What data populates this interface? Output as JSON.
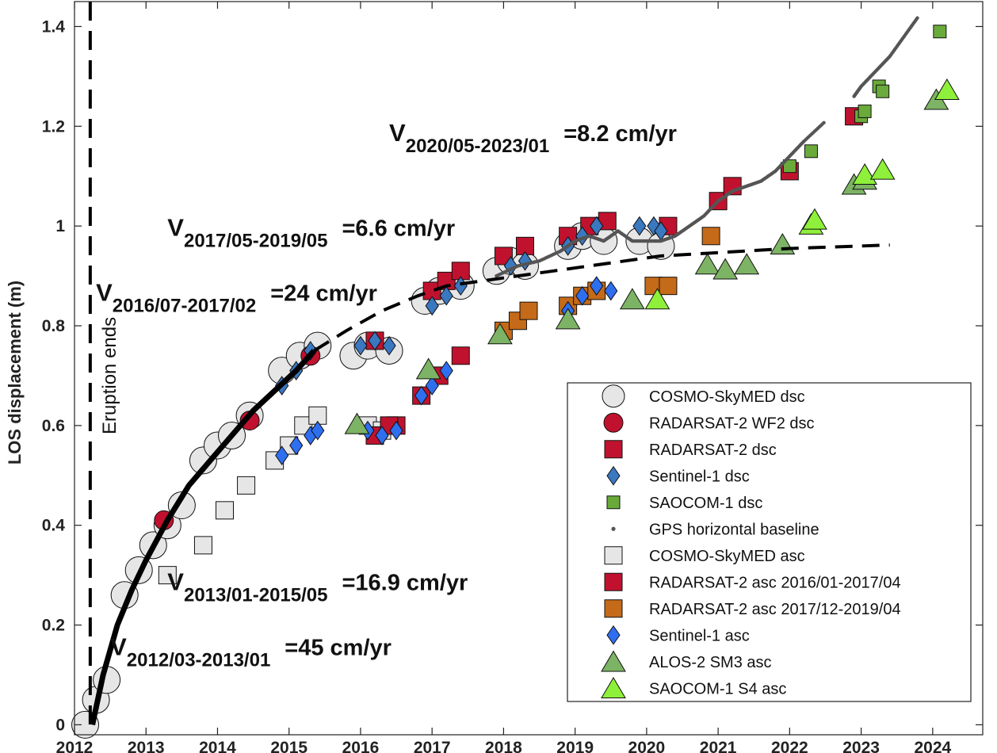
{
  "chart_data": {
    "type": "scatter",
    "title": "",
    "xlabel": "",
    "ylabel": "LOS displacement (m)",
    "xlim": [
      2012.0,
      2024.7
    ],
    "ylim": [
      -0.02,
      1.45
    ],
    "xticks": [
      2012,
      2013,
      2014,
      2015,
      2016,
      2017,
      2018,
      2019,
      2020,
      2021,
      2022,
      2023,
      2024
    ],
    "xtick_labels": [
      "2012",
      "2013",
      "2014",
      "2015",
      "2016",
      "2017",
      "2018",
      "2019",
      "2020",
      "2021",
      "2022",
      "2023",
      "2024"
    ],
    "yticks": [
      0,
      0.2,
      0.4,
      0.6,
      0.8,
      1.0,
      1.2,
      1.4
    ],
    "ytick_labels": [
      "0",
      "0.2",
      "0.4",
      "0.6",
      "0.8",
      "1",
      "1.2",
      "1.4"
    ],
    "grid": false,
    "legend_position": "bottom-right",
    "eruption_line": {
      "x": 2012.22,
      "label": "Eruption ends"
    },
    "fits": [
      {
        "style": "solid",
        "x": [
          2012.25,
          2012.4,
          2012.6,
          2012.8,
          2013.0,
          2013.3,
          2013.6,
          2013.9,
          2014.2,
          2014.5,
          2014.8,
          2015.1,
          2015.35
        ],
        "y": [
          0.0,
          0.1,
          0.2,
          0.27,
          0.33,
          0.41,
          0.48,
          0.53,
          0.58,
          0.63,
          0.67,
          0.71,
          0.75
        ]
      },
      {
        "style": "dashed",
        "x": [
          2015.35,
          2015.8,
          2016.3,
          2016.8,
          2017.2,
          2017.7,
          2018.2,
          2018.7,
          2019.2,
          2019.7,
          2020.2,
          2020.8,
          2021.4,
          2022.0,
          2022.6,
          2023.4
        ],
        "y": [
          0.75,
          0.79,
          0.83,
          0.86,
          0.88,
          0.89,
          0.9,
          0.91,
          0.92,
          0.93,
          0.94,
          0.945,
          0.95,
          0.955,
          0.958,
          0.962
        ]
      }
    ],
    "annotations": [
      {
        "main": "V",
        "sub": "2012/03-2013/01",
        "rate": "=45 cm/yr",
        "x": 2012.5,
        "y": 0.14
      },
      {
        "main": "V",
        "sub": "2013/01-2015/05",
        "rate": "=16.9 cm/yr",
        "x": 2013.3,
        "y": 0.27
      },
      {
        "main": "V",
        "sub": "2016/07-2017/02",
        "rate": "=24 cm/yr",
        "x": 2012.3,
        "y": 0.85
      },
      {
        "main": "V",
        "sub": "2017/05-2019/05",
        "rate": "=6.6 cm/yr",
        "x": 2013.3,
        "y": 0.98
      },
      {
        "main": "V",
        "sub": "2020/05-2023/01",
        "rate": "=8.2 cm/yr",
        "x": 2016.4,
        "y": 1.17
      }
    ],
    "series": [
      {
        "name": "COSMO-SkyMED dsc",
        "marker": "circle",
        "size": 17,
        "color": "#e6e6e6",
        "x": [
          2012.15,
          2012.3,
          2012.45,
          2012.7,
          2012.9,
          2013.1,
          2013.3,
          2013.5,
          2013.8,
          2014.0,
          2014.2,
          2014.45,
          2014.9,
          2015.15,
          2015.4,
          2015.9,
          2016.1,
          2016.4,
          2016.9,
          2017.1,
          2017.4,
          2017.9,
          2018.1,
          2018.3,
          2018.9,
          2019.1,
          2019.4,
          2019.9,
          2020.2
        ],
        "y": [
          0.0,
          0.05,
          0.09,
          0.26,
          0.31,
          0.36,
          0.4,
          0.44,
          0.53,
          0.56,
          0.58,
          0.62,
          0.71,
          0.74,
          0.76,
          0.74,
          0.76,
          0.75,
          0.85,
          0.87,
          0.88,
          0.91,
          0.93,
          0.92,
          0.96,
          0.98,
          0.97,
          0.97,
          0.96
        ]
      },
      {
        "name": "RADARSAT-2 WF2 dsc",
        "marker": "circle",
        "size": 12,
        "color": "#c0122e",
        "x": [
          2013.25,
          2014.45,
          2015.3
        ],
        "y": [
          0.41,
          0.61,
          0.74
        ]
      },
      {
        "name": "RADARSAT-2 dsc",
        "marker": "square",
        "size": 11,
        "color": "#c0122e",
        "x": [
          2016.2,
          2016.5,
          2017.0,
          2017.2,
          2017.4,
          2018.0,
          2018.3,
          2018.9,
          2019.2,
          2019.45,
          2020.3,
          2021.0,
          2021.2,
          2022.0,
          2022.9
        ],
        "y": [
          0.77,
          0.6,
          0.87,
          0.89,
          0.91,
          0.94,
          0.96,
          0.98,
          1.0,
          1.01,
          1.0,
          1.05,
          1.08,
          1.11,
          1.22
        ]
      },
      {
        "name": "Sentinel-1 dsc",
        "marker": "diamond",
        "size": 10,
        "color": "#3a78c0",
        "x": [
          2014.9,
          2015.1,
          2015.3,
          2016.0,
          2016.2,
          2016.4,
          2017.0,
          2017.2,
          2017.4,
          2018.1,
          2018.3,
          2018.9,
          2019.1,
          2019.3,
          2019.9,
          2020.1,
          2020.2
        ],
        "y": [
          0.68,
          0.71,
          0.75,
          0.76,
          0.77,
          0.76,
          0.84,
          0.86,
          0.88,
          0.92,
          0.93,
          0.96,
          0.98,
          1.0,
          1.0,
          1.0,
          0.99
        ]
      },
      {
        "name": "SAOCOM-1 dsc",
        "marker": "square",
        "size": 8,
        "color": "#6aaa3a",
        "x": [
          2022.0,
          2022.3,
          2023.0,
          2023.05,
          2023.25,
          2023.3,
          2024.1
        ],
        "y": [
          1.12,
          1.15,
          1.22,
          1.23,
          1.28,
          1.27,
          1.39
        ]
      },
      {
        "name": "GPS horizontal baseline",
        "marker": "dot",
        "size": 2.2,
        "color": "#555555",
        "segments": [
          {
            "x": [
              2017.9,
              2018.2,
              2018.5,
              2018.8,
              2019.0,
              2019.2,
              2019.4,
              2019.6,
              2019.8,
              2020.0,
              2020.2,
              2020.4,
              2020.6,
              2020.8,
              2021.0,
              2021.2,
              2021.4,
              2021.6,
              2021.8,
              2022.0,
              2022.2,
              2022.5
            ],
            "y": [
              0.9,
              0.92,
              0.93,
              0.95,
              0.97,
              0.98,
              0.97,
              0.99,
              0.97,
              0.97,
              0.97,
              0.98,
              1.0,
              1.02,
              1.05,
              1.07,
              1.08,
              1.09,
              1.11,
              1.14,
              1.17,
              1.21
            ]
          },
          {
            "x": [
              2022.9,
              2023.0,
              2023.2,
              2023.4,
              2023.6,
              2023.8
            ],
            "y": [
              1.26,
              1.28,
              1.31,
              1.34,
              1.38,
              1.42
            ]
          }
        ]
      },
      {
        "name": "COSMO-SkyMED asc",
        "marker": "square",
        "size": 11,
        "color": "#e6e6e6",
        "x": [
          2013.3,
          2013.8,
          2014.1,
          2014.4,
          2014.8,
          2015.0,
          2015.2,
          2015.4,
          2016.1,
          2016.3
        ],
        "y": [
          0.3,
          0.36,
          0.43,
          0.48,
          0.53,
          0.56,
          0.6,
          0.62,
          0.6,
          0.59
        ]
      },
      {
        "name": "RADARSAT-2 asc 2016/01-2017/04",
        "marker": "square",
        "size": 11,
        "color": "#c0122e",
        "x": [
          2016.2,
          2016.4,
          2016.85,
          2017.1,
          2017.4
        ],
        "y": [
          0.58,
          0.6,
          0.66,
          0.7,
          0.74
        ]
      },
      {
        "name": "RADARSAT-2 asc 2017/12-2019/04",
        "marker": "square",
        "size": 11,
        "color": "#c46a18",
        "x": [
          2018.0,
          2018.2,
          2018.35,
          2018.9,
          2019.1,
          2019.3,
          2020.1,
          2020.3,
          2020.9
        ],
        "y": [
          0.79,
          0.81,
          0.83,
          0.84,
          0.86,
          0.87,
          0.88,
          0.88,
          0.98
        ]
      },
      {
        "name": "Sentinel-1 asc",
        "marker": "diamond",
        "size": 10,
        "color": "#2e6ff0",
        "x": [
          2014.9,
          2015.1,
          2015.3,
          2015.4,
          2016.1,
          2016.3,
          2016.5,
          2016.85,
          2017.0,
          2017.2,
          2018.9,
          2019.1,
          2019.3,
          2019.5
        ],
        "y": [
          0.54,
          0.56,
          0.58,
          0.59,
          0.59,
          0.58,
          0.59,
          0.66,
          0.68,
          0.71,
          0.83,
          0.86,
          0.88,
          0.87
        ]
      },
      {
        "name": "ALOS-2 SM3 asc",
        "marker": "triangle",
        "size": 15,
        "color": "#7cb364",
        "x": [
          2015.95,
          2016.95,
          2017.95,
          2018.9,
          2019.8,
          2020.85,
          2021.1,
          2021.4,
          2021.9,
          2022.9,
          2023.05,
          2024.05
        ],
        "y": [
          0.6,
          0.71,
          0.78,
          0.81,
          0.85,
          0.92,
          0.91,
          0.92,
          0.96,
          1.08,
          1.09,
          1.25
        ]
      },
      {
        "name": "SAOCOM-1 S4 asc",
        "marker": "triangle",
        "size": 15,
        "color": "#8ef03a",
        "x": [
          2020.15,
          2022.3,
          2022.35,
          2023.05,
          2023.3,
          2024.2
        ],
        "y": [
          0.85,
          1.0,
          1.01,
          1.1,
          1.11,
          1.27
        ]
      }
    ]
  }
}
